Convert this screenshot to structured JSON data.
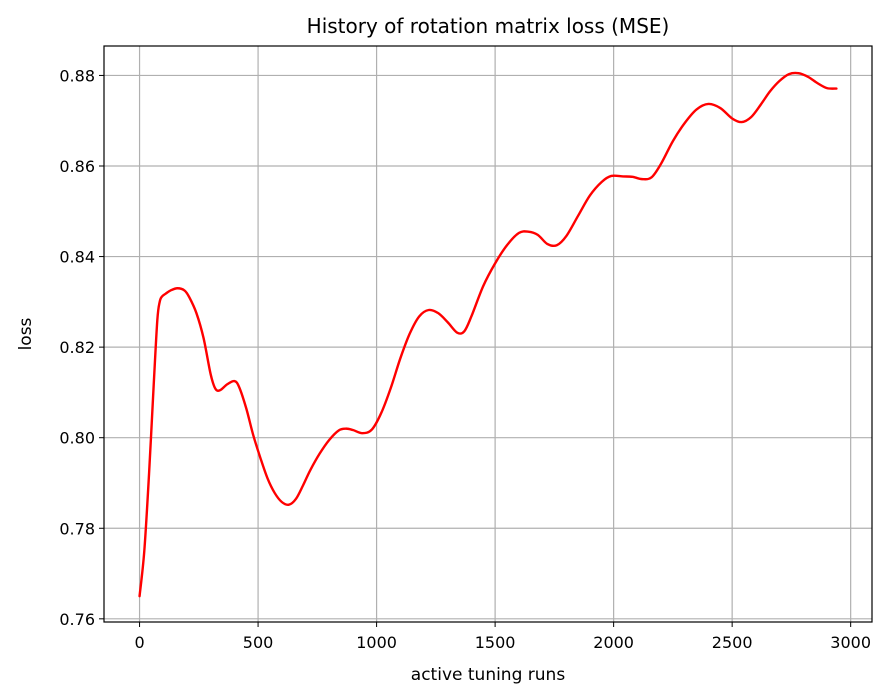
{
  "chart_data": {
    "type": "line",
    "title": "History of rotation matrix loss (MSE)",
    "xlabel": "active tuning runs",
    "ylabel": "loss",
    "xlim": [
      -150,
      3090
    ],
    "ylim": [
      0.7593,
      0.8865
    ],
    "xticks": [
      0,
      500,
      1000,
      1500,
      2000,
      2500,
      3000
    ],
    "yticks": [
      0.76,
      0.78,
      0.8,
      0.82,
      0.84,
      0.86,
      0.88
    ],
    "ytick_labels": [
      "0.76",
      "0.78",
      "0.80",
      "0.82",
      "0.84",
      "0.86",
      "0.88"
    ],
    "grid": true,
    "series": [
      {
        "color": "#ff0000",
        "x": [
          0,
          20,
          40,
          60,
          75,
          85,
          95,
          110,
          130,
          160,
          190,
          210,
          240,
          270,
          300,
          320,
          340,
          370,
          400,
          420,
          450,
          480,
          510,
          540,
          570,
          600,
          630,
          660,
          690,
          720,
          760,
          800,
          840,
          870,
          900,
          940,
          980,
          1020,
          1060,
          1100,
          1140,
          1180,
          1220,
          1260,
          1300,
          1340,
          1370,
          1400,
          1450,
          1500,
          1550,
          1600,
          1640,
          1680,
          1720,
          1760,
          1800,
          1850,
          1900,
          1950,
          1990,
          2040,
          2080,
          2120,
          2160,
          2200,
          2250,
          2300,
          2350,
          2400,
          2450,
          2500,
          2540,
          2580,
          2620,
          2660,
          2700,
          2740,
          2780,
          2820,
          2860,
          2900,
          2940
        ],
        "y": [
          0.765,
          0.775,
          0.792,
          0.812,
          0.826,
          0.83,
          0.8312,
          0.8318,
          0.8325,
          0.833,
          0.8325,
          0.831,
          0.8275,
          0.822,
          0.814,
          0.8108,
          0.8105,
          0.8118,
          0.8125,
          0.8112,
          0.8065,
          0.8005,
          0.7955,
          0.791,
          0.7878,
          0.7858,
          0.7852,
          0.7865,
          0.7895,
          0.7928,
          0.7965,
          0.7995,
          0.8016,
          0.802,
          0.8017,
          0.801,
          0.8018,
          0.8055,
          0.811,
          0.8175,
          0.823,
          0.8268,
          0.8282,
          0.8275,
          0.8255,
          0.8232,
          0.8235,
          0.8268,
          0.8335,
          0.8385,
          0.8425,
          0.8452,
          0.8455,
          0.8448,
          0.8428,
          0.8425,
          0.8445,
          0.849,
          0.8535,
          0.8565,
          0.8578,
          0.8577,
          0.8576,
          0.8571,
          0.8575,
          0.8605,
          0.8655,
          0.8695,
          0.8725,
          0.8737,
          0.8728,
          0.8705,
          0.8697,
          0.8708,
          0.8735,
          0.8765,
          0.8788,
          0.8803,
          0.8805,
          0.8797,
          0.8783,
          0.8772,
          0.8771
        ]
      }
    ]
  }
}
